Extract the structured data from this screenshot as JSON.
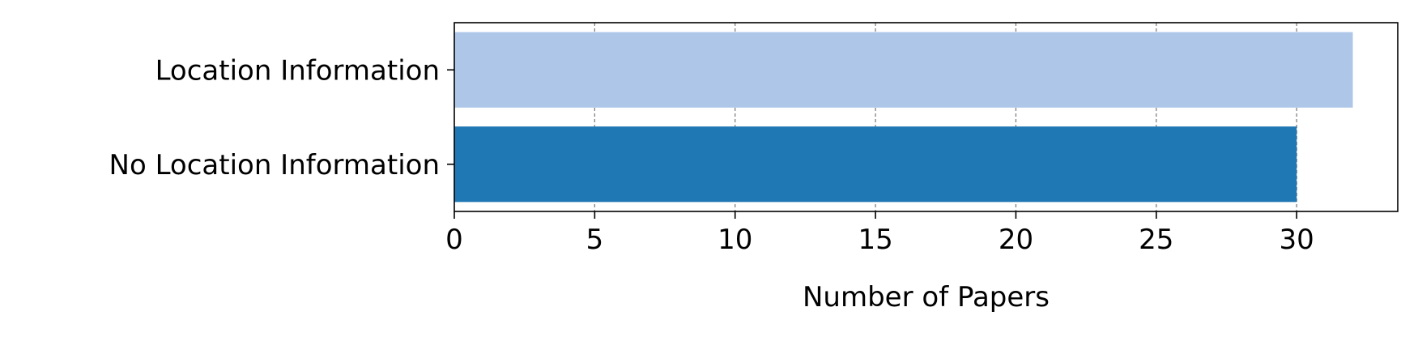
{
  "chart_data": {
    "type": "bar",
    "orientation": "horizontal",
    "categories": [
      "Location Information",
      "No Location Information"
    ],
    "values": [
      32,
      30
    ],
    "colors": [
      "#aec7e8",
      "#1f77b4"
    ],
    "title": "",
    "xlabel": "Number of Papers",
    "ylabel": "",
    "xlim": [
      0,
      33.6
    ],
    "xticks": [
      0,
      5,
      10,
      15,
      20,
      25,
      30
    ],
    "grid": {
      "x": true,
      "y": false,
      "style": "dashed",
      "color": "#808080"
    }
  }
}
